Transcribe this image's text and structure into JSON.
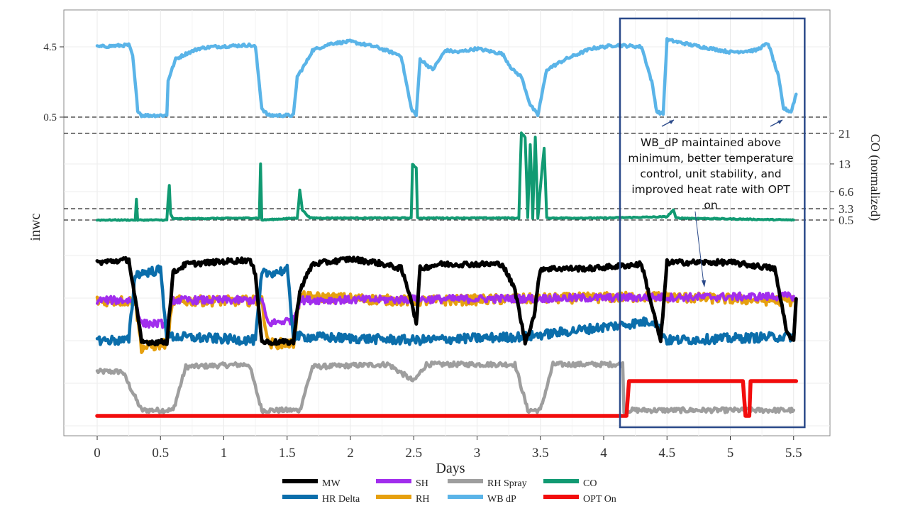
{
  "chart_data": {
    "type": "line",
    "xlabel": "Days",
    "ylabel_left": "inwc",
    "ylabel_right": "CO (normalized)",
    "x_ticks": [
      "0",
      "0.5",
      "1",
      "1.5",
      "2",
      "2.5",
      "3",
      "3.5",
      "4",
      "4.5",
      "5",
      "5.5"
    ],
    "xlim": [
      -0.27,
      5.7
    ],
    "wbdp_ticks": [
      "4.5",
      "0.5"
    ],
    "co_ticks": [
      "21",
      "13",
      "6.6",
      "3.3",
      "0.5"
    ],
    "reference_lines": [
      {
        "panel": "wbdp",
        "value": 0.5
      },
      {
        "panel": "co",
        "value": 21
      },
      {
        "panel": "co",
        "value": 3.3
      },
      {
        "panel": "co",
        "value": 0.5
      }
    ],
    "highlight_box": {
      "x_start": 4.14,
      "x_end": 5.52
    },
    "annotation": "WB_dP maintained above minimum, better temperature control, unit stability, and improved heat rate with OPT on",
    "grid": true,
    "legend_position": "bottom",
    "legend": [
      "MW",
      "SH",
      "RH Spray",
      "CO",
      "HR Delta",
      "RH",
      "WB dP",
      "OPT On"
    ],
    "colors": {
      "MW": "#000000",
      "HR Delta": "#0b6eab",
      "SH": "#a12ded",
      "RH": "#e6a00f",
      "RH Spray": "#9e9e9e",
      "WB dP": "#5ab4e8",
      "CO": "#119a72",
      "OPT On": "#f20d0d",
      "box": "#2b4a8a"
    },
    "series": [
      {
        "name": "WB dP",
        "unit": "inwc",
        "points": [
          [
            0,
            4.5
          ],
          [
            0.25,
            4.6
          ],
          [
            0.28,
            4.0
          ],
          [
            0.32,
            0.9
          ],
          [
            0.35,
            0.6
          ],
          [
            0.55,
            0.6
          ],
          [
            0.56,
            2.6
          ],
          [
            0.62,
            3.8
          ],
          [
            0.7,
            4.1
          ],
          [
            0.8,
            4.4
          ],
          [
            0.9,
            4.5
          ],
          [
            1.2,
            4.6
          ],
          [
            1.25,
            4.5
          ],
          [
            1.3,
            1.0
          ],
          [
            1.35,
            0.6
          ],
          [
            1.55,
            0.6
          ],
          [
            1.58,
            2.8
          ],
          [
            1.65,
            3.6
          ],
          [
            1.7,
            4.3
          ],
          [
            1.85,
            4.7
          ],
          [
            2.0,
            4.8
          ],
          [
            2.2,
            4.5
          ],
          [
            2.4,
            4.0
          ],
          [
            2.48,
            1.0
          ],
          [
            2.52,
            0.6
          ],
          [
            2.55,
            3.8
          ],
          [
            2.65,
            3.2
          ],
          [
            2.75,
            4.3
          ],
          [
            2.85,
            4.2
          ],
          [
            3.0,
            4.4
          ],
          [
            3.2,
            4.1
          ],
          [
            3.28,
            3.2
          ],
          [
            3.35,
            2.8
          ],
          [
            3.42,
            1.2
          ],
          [
            3.48,
            0.6
          ],
          [
            3.55,
            3.2
          ],
          [
            3.7,
            3.8
          ],
          [
            3.9,
            4.4
          ],
          [
            4.1,
            4.6
          ],
          [
            4.3,
            4.5
          ],
          [
            4.38,
            2.5
          ],
          [
            4.42,
            0.8
          ],
          [
            4.47,
            0.7
          ],
          [
            4.5,
            4.9
          ],
          [
            4.7,
            4.6
          ],
          [
            5.0,
            4.2
          ],
          [
            5.2,
            4.3
          ],
          [
            5.3,
            4.7
          ],
          [
            5.38,
            2.8
          ],
          [
            5.42,
            1.0
          ],
          [
            5.48,
            0.8
          ],
          [
            5.52,
            1.8
          ]
        ]
      },
      {
        "name": "CO",
        "unit": "normalized",
        "points": [
          [
            0,
            0.5
          ],
          [
            0.3,
            0.5
          ],
          [
            0.31,
            5
          ],
          [
            0.32,
            0.5
          ],
          [
            0.55,
            0.5
          ],
          [
            0.56,
            5
          ],
          [
            0.57,
            8
          ],
          [
            0.58,
            2
          ],
          [
            0.6,
            0.8
          ],
          [
            1.28,
            1
          ],
          [
            1.29,
            13
          ],
          [
            1.3,
            0.5
          ],
          [
            1.58,
            1
          ],
          [
            1.6,
            7
          ],
          [
            1.62,
            3
          ],
          [
            1.68,
            1
          ],
          [
            2.48,
            1
          ],
          [
            2.49,
            13
          ],
          [
            2.52,
            12
          ],
          [
            2.53,
            1
          ],
          [
            3.33,
            1
          ],
          [
            3.35,
            21
          ],
          [
            3.38,
            20
          ],
          [
            3.4,
            1
          ],
          [
            3.42,
            18
          ],
          [
            3.44,
            1
          ],
          [
            3.46,
            20
          ],
          [
            3.48,
            1
          ],
          [
            3.53,
            17
          ],
          [
            3.55,
            1
          ],
          [
            4.0,
            1
          ],
          [
            4.5,
            1.3
          ],
          [
            4.55,
            3
          ],
          [
            4.57,
            1
          ],
          [
            5.5,
            0.5
          ]
        ]
      },
      {
        "name": "MW",
        "points": [
          [
            0,
            0.92
          ],
          [
            0.25,
            0.95
          ],
          [
            0.3,
            0.5
          ],
          [
            0.35,
            0.0
          ],
          [
            0.55,
            0.0
          ],
          [
            0.6,
            0.8
          ],
          [
            0.7,
            0.9
          ],
          [
            1.2,
            0.95
          ],
          [
            1.25,
            0.8
          ],
          [
            1.3,
            0.0
          ],
          [
            1.55,
            0.0
          ],
          [
            1.6,
            0.6
          ],
          [
            1.7,
            0.9
          ],
          [
            2.0,
            0.96
          ],
          [
            2.2,
            0.92
          ],
          [
            2.4,
            0.85
          ],
          [
            2.48,
            0.5
          ],
          [
            2.52,
            0.2
          ],
          [
            2.55,
            0.85
          ],
          [
            2.7,
            0.9
          ],
          [
            3.2,
            0.9
          ],
          [
            3.3,
            0.6
          ],
          [
            3.38,
            0.0
          ],
          [
            3.45,
            0.3
          ],
          [
            3.5,
            0.85
          ],
          [
            3.9,
            0.85
          ],
          [
            4.3,
            0.9
          ],
          [
            4.4,
            0.3
          ],
          [
            4.45,
            0.0
          ],
          [
            4.5,
            0.92
          ],
          [
            5.0,
            0.92
          ],
          [
            5.35,
            0.85
          ],
          [
            5.45,
            0.1
          ],
          [
            5.5,
            0.0
          ],
          [
            5.52,
            0.5
          ]
        ]
      },
      {
        "name": "HR Delta",
        "points": [
          [
            0,
            0.05
          ],
          [
            0.25,
            0.05
          ],
          [
            0.3,
            0.9
          ],
          [
            0.5,
            0.95
          ],
          [
            0.55,
            0.1
          ],
          [
            1.25,
            0.05
          ],
          [
            1.3,
            0.9
          ],
          [
            1.5,
            0.95
          ],
          [
            1.55,
            0.1
          ],
          [
            2.5,
            0.05
          ],
          [
            3.4,
            0.1
          ],
          [
            4.4,
            0.3
          ],
          [
            4.5,
            0.05
          ],
          [
            5.5,
            0.1
          ]
        ]
      },
      {
        "name": "SH",
        "points": [
          [
            0,
            0.5
          ],
          [
            0.3,
            0.5
          ],
          [
            0.35,
            0.2
          ],
          [
            0.55,
            0.2
          ],
          [
            0.6,
            0.5
          ],
          [
            1.3,
            0.5
          ],
          [
            1.35,
            0.2
          ],
          [
            1.55,
            0.25
          ],
          [
            1.6,
            0.5
          ],
          [
            5.5,
            0.55
          ]
        ]
      },
      {
        "name": "RH",
        "points": [
          [
            0,
            0.55
          ],
          [
            0.3,
            0.55
          ],
          [
            0.35,
            0.0
          ],
          [
            0.55,
            0.05
          ],
          [
            0.6,
            0.55
          ],
          [
            1.3,
            0.55
          ],
          [
            1.35,
            0.05
          ],
          [
            1.55,
            0.05
          ],
          [
            1.6,
            0.6
          ],
          [
            2.5,
            0.55
          ],
          [
            4.4,
            0.6
          ],
          [
            5.5,
            0.55
          ]
        ]
      },
      {
        "name": "RH Spray",
        "points": [
          [
            0,
            0.8
          ],
          [
            0.2,
            0.8
          ],
          [
            0.35,
            0.0
          ],
          [
            0.6,
            0.0
          ],
          [
            0.7,
            0.9
          ],
          [
            1.2,
            0.95
          ],
          [
            1.3,
            0.0
          ],
          [
            1.6,
            0.0
          ],
          [
            1.7,
            0.9
          ],
          [
            2.3,
            0.95
          ],
          [
            2.5,
            0.6
          ],
          [
            2.6,
            0.95
          ],
          [
            3.3,
            0.95
          ],
          [
            3.4,
            0.0
          ],
          [
            3.5,
            0.0
          ],
          [
            3.6,
            0.95
          ],
          [
            4.15,
            0.95
          ],
          [
            4.16,
            0.0
          ],
          [
            5.5,
            0.0
          ]
        ]
      },
      {
        "name": "OPT On",
        "points": [
          [
            0,
            0
          ],
          [
            4.18,
            0
          ],
          [
            4.2,
            1
          ],
          [
            5.1,
            1
          ],
          [
            5.12,
            0
          ],
          [
            5.15,
            0
          ],
          [
            5.16,
            1
          ],
          [
            5.52,
            1
          ]
        ]
      }
    ]
  }
}
